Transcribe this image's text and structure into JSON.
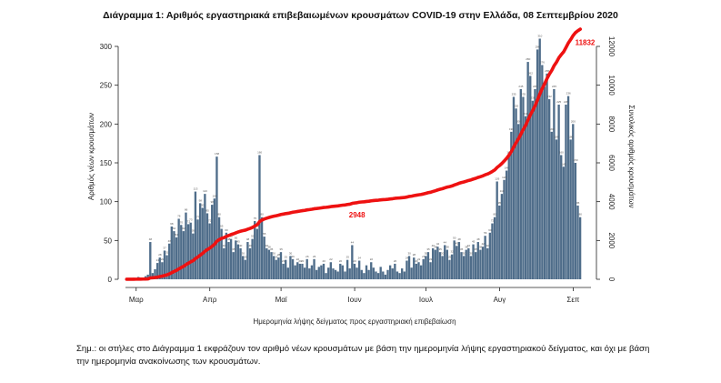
{
  "chart_data": {
    "type": "bar",
    "title": "Διάγραμμα 1: Αριθμός εργαστηριακά επιβεβαιωμένων κρουσμάτων COVID-19 στην Ελλάδα, 08 Σεπτεμβρίου 2020",
    "xlabel": "Ημερομηνία λήψης δείγματος προς εργαστηριακή επιβεβαίωση",
    "ylabel": "Αριθμός νέων κρουσμάτων",
    "y2label": "Συνολικός αριθμός κρουσμάτων",
    "x_start": "2020-02-26",
    "x_end": "2020-09-08",
    "x_ticks": [
      {
        "label": "Μαρ",
        "date": "2020-03-01"
      },
      {
        "label": "Απρ",
        "date": "2020-04-01"
      },
      {
        "label": "Μαϊ",
        "date": "2020-05-01"
      },
      {
        "label": "Ιουν",
        "date": "2020-06-01"
      },
      {
        "label": "Ιουλ",
        "date": "2020-07-01"
      },
      {
        "label": "Αυγ",
        "date": "2020-08-01"
      },
      {
        "label": "Σεπ",
        "date": "2020-09-01"
      }
    ],
    "ylim": [
      0,
      300
    ],
    "yticks": [
      0,
      50,
      100,
      150,
      200,
      250,
      300
    ],
    "y2lim": [
      0,
      12000
    ],
    "y2ticks": [
      0,
      2000,
      4000,
      6000,
      8000,
      10000,
      12000
    ],
    "bar_color": "#4f6d8a",
    "line_color": "#ee1111",
    "daily_new_cases": [
      1,
      1,
      1,
      2,
      1,
      3,
      2,
      1,
      4,
      6,
      48,
      8,
      13,
      21,
      28,
      22,
      37,
      31,
      46,
      68,
      62,
      54,
      78,
      70,
      62,
      86,
      71,
      73,
      59,
      113,
      77,
      98,
      92,
      110,
      85,
      72,
      96,
      104,
      158,
      80,
      65,
      40,
      60,
      48,
      52,
      35,
      50,
      45,
      40,
      30,
      25,
      48,
      40,
      52,
      75,
      65,
      160,
      80,
      55,
      40,
      38,
      35,
      30,
      25,
      28,
      35,
      20,
      25,
      15,
      30,
      26,
      18,
      22,
      20,
      20,
      15,
      26,
      14,
      18,
      26,
      12,
      16,
      18,
      20,
      8,
      15,
      22,
      14,
      12,
      10,
      20,
      18,
      10,
      25,
      14,
      44,
      20,
      15,
      24,
      12,
      8,
      18,
      12,
      22,
      15,
      10,
      8,
      16,
      10,
      6,
      12,
      18,
      14,
      20,
      10,
      8,
      14,
      10,
      24,
      30,
      15,
      28,
      20,
      22,
      18,
      26,
      30,
      35,
      22,
      40,
      38,
      42,
      35,
      30,
      44,
      38,
      25,
      32,
      50,
      43,
      48,
      35,
      30,
      38,
      40,
      30,
      45,
      35,
      48,
      38,
      42,
      56,
      40,
      60,
      72,
      80,
      126,
      95,
      110,
      128,
      140,
      160,
      190,
      235,
      220,
      200,
      245,
      235,
      210,
      280,
      262,
      230,
      245,
      296,
      310,
      276,
      248,
      265,
      232,
      190,
      245,
      180,
      225,
      160,
      145,
      225,
      236,
      180,
      200,
      150,
      95,
      80
    ],
    "cumulative_labels": [
      {
        "date": "2020-06-02",
        "value": 2948
      },
      {
        "date": "2020-09-06",
        "value": 11832
      }
    ],
    "bar_value_labels_note": "tiny per-bar value labels drawn above bars"
  },
  "note": "Σημ.: οι στήλες στο Διάγραμμα 1 εκφράζουν τον αριθμό νέων κρουσμάτων με βάση την ημερομηνία λήψης εργαστηριακού δείγματος, και όχι με βάση την ημερομηνία ανακοίνωσης των κρουσμάτων."
}
